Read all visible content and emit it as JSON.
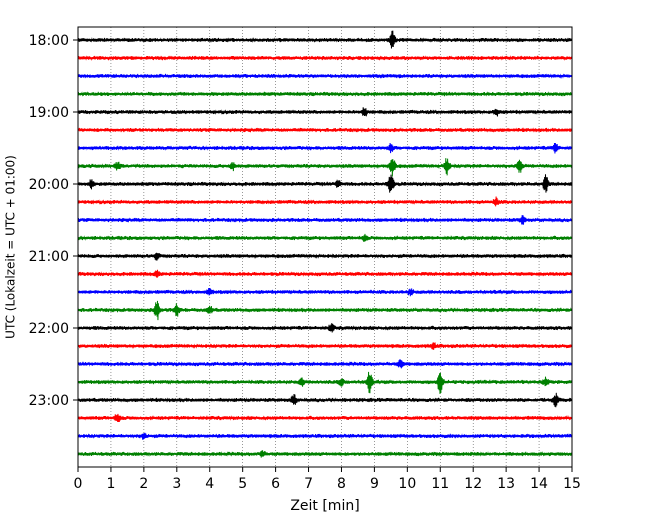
{
  "chart_data": {
    "type": "line",
    "subtype": "helicorder",
    "title": "",
    "xlabel": "Zeit  [min]",
    "ylabel": "UTC (Lokalzeit = UTC + 01:00)",
    "xlim": [
      0,
      15
    ],
    "x_ticks": [
      0,
      1,
      2,
      3,
      4,
      5,
      6,
      7,
      8,
      9,
      10,
      11,
      12,
      13,
      14,
      15
    ],
    "y_tick_labels": [
      "18:00",
      "19:00",
      "20:00",
      "21:00",
      "22:00",
      "23:00"
    ],
    "grid": "vertical dotted",
    "trace_colors": [
      "#000000",
      "#ff0000",
      "#0000ff",
      "#008000"
    ],
    "traces": [
      {
        "start": "18:00",
        "events": [
          [
            9.55,
            1.0
          ]
        ]
      },
      {
        "start": "18:15",
        "events": []
      },
      {
        "start": "18:30",
        "events": []
      },
      {
        "start": "18:45",
        "events": []
      },
      {
        "start": "19:00",
        "events": [
          [
            8.7,
            0.5
          ],
          [
            12.7,
            0.4
          ]
        ]
      },
      {
        "start": "19:15",
        "events": []
      },
      {
        "start": "19:30",
        "events": [
          [
            9.5,
            0.4
          ],
          [
            14.5,
            0.5
          ]
        ]
      },
      {
        "start": "19:45",
        "events": [
          [
            9.55,
            1.1
          ],
          [
            11.2,
            0.9
          ],
          [
            13.4,
            0.8
          ],
          [
            4.7,
            0.4
          ],
          [
            1.2,
            0.4
          ]
        ]
      },
      {
        "start": "20:00",
        "events": [
          [
            9.5,
            1.3
          ],
          [
            14.2,
            0.9
          ],
          [
            0.4,
            0.4
          ],
          [
            7.9,
            0.4
          ]
        ]
      },
      {
        "start": "20:15",
        "events": [
          [
            12.7,
            0.4
          ]
        ]
      },
      {
        "start": "20:30",
        "events": [
          [
            13.5,
            0.4
          ]
        ]
      },
      {
        "start": "20:45",
        "events": [
          [
            8.7,
            0.3
          ]
        ]
      },
      {
        "start": "21:00",
        "events": [
          [
            2.4,
            0.4
          ]
        ]
      },
      {
        "start": "21:15",
        "events": [
          [
            2.4,
            0.3
          ]
        ]
      },
      {
        "start": "21:30",
        "events": [
          [
            4.0,
            0.3
          ],
          [
            10.1,
            0.3
          ]
        ]
      },
      {
        "start": "21:45",
        "events": [
          [
            2.4,
            1.1
          ],
          [
            3.0,
            0.6
          ],
          [
            4.0,
            0.4
          ]
        ]
      },
      {
        "start": "22:00",
        "events": [
          [
            7.7,
            0.4
          ]
        ]
      },
      {
        "start": "22:15",
        "events": [
          [
            10.8,
            0.3
          ]
        ]
      },
      {
        "start": "22:30",
        "events": [
          [
            9.8,
            0.4
          ]
        ]
      },
      {
        "start": "22:45",
        "events": [
          [
            8.85,
            1.2
          ],
          [
            11.0,
            1.3
          ],
          [
            6.8,
            0.4
          ],
          [
            14.2,
            0.4
          ],
          [
            8.0,
            0.4
          ]
        ]
      },
      {
        "start": "23:00",
        "events": [
          [
            6.55,
            0.6
          ],
          [
            14.5,
            0.7
          ]
        ]
      },
      {
        "start": "23:15",
        "events": [
          [
            1.2,
            0.5
          ]
        ]
      },
      {
        "start": "23:30",
        "events": [
          [
            2.0,
            0.3
          ]
        ]
      },
      {
        "start": "23:45",
        "events": [
          [
            5.6,
            0.3
          ]
        ]
      }
    ]
  }
}
